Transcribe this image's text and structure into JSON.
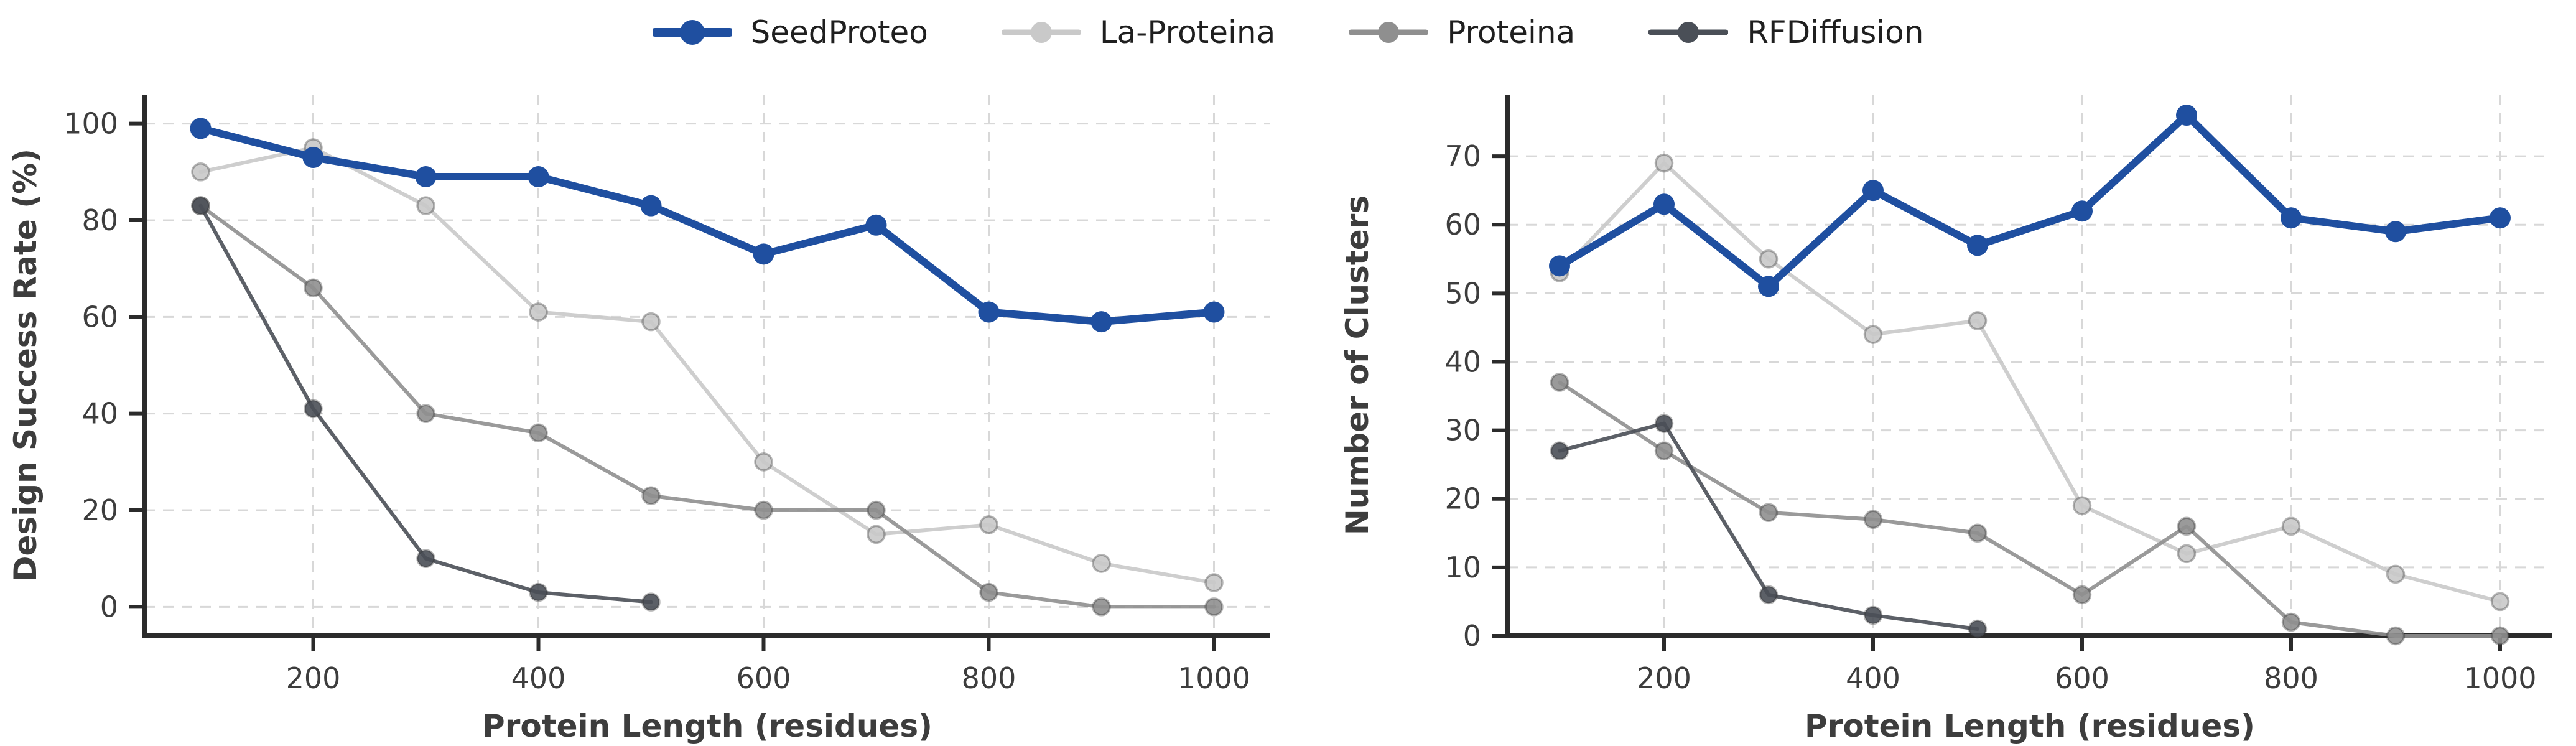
{
  "figure": {
    "background": "#ffffff",
    "legend": {
      "position": "top-center",
      "items": [
        {
          "label": "SeedProteo",
          "color": "#1f4fa0",
          "emphasis": true
        },
        {
          "label": "La-Proteina",
          "color": "#c9c9c9",
          "emphasis": false
        },
        {
          "label": "Proteina",
          "color": "#8f8f8f",
          "emphasis": false
        },
        {
          "label": "RFDiffusion",
          "color": "#4a4f57",
          "emphasis": false
        }
      ]
    },
    "style": {
      "spine_color": "#2b2b2b",
      "grid_color": "#d8d8d8",
      "tick_label_color": "#3d3d3d",
      "axis_title_color": "#3d3d3d"
    }
  },
  "chart_data": [
    {
      "type": "line",
      "title": "",
      "xlabel": "Protein Length (residues)",
      "ylabel": "Design Success Rate (%)",
      "xlim": [
        50,
        1050
      ],
      "ylim": [
        -6,
        106
      ],
      "xticks": [
        200,
        400,
        600,
        800,
        1000
      ],
      "yticks": [
        0,
        20,
        40,
        60,
        80,
        100
      ],
      "grid": true,
      "legend_position": "figure-top",
      "series": [
        {
          "name": "SeedProteo",
          "color": "#1f4fa0",
          "emphasis": true,
          "x": [
            100,
            200,
            300,
            400,
            500,
            600,
            700,
            800,
            900,
            1000
          ],
          "values": [
            99,
            93,
            89,
            89,
            83,
            73,
            79,
            61,
            59,
            61
          ]
        },
        {
          "name": "La-Proteina",
          "color": "#c9c9c9",
          "emphasis": false,
          "x": [
            100,
            200,
            300,
            400,
            500,
            600,
            700,
            800,
            900,
            1000
          ],
          "values": [
            90,
            95,
            83,
            61,
            59,
            30,
            15,
            17,
            9,
            5
          ]
        },
        {
          "name": "Proteina",
          "color": "#8f8f8f",
          "emphasis": false,
          "x": [
            100,
            200,
            300,
            400,
            500,
            600,
            700,
            800,
            900,
            1000
          ],
          "values": [
            83,
            66,
            40,
            36,
            23,
            20,
            20,
            3,
            0,
            0
          ]
        },
        {
          "name": "RFDiffusion",
          "color": "#4a4f57",
          "emphasis": false,
          "x": [
            100,
            200,
            300,
            400,
            500
          ],
          "values": [
            83,
            41,
            10,
            3,
            1
          ]
        }
      ]
    },
    {
      "type": "line",
      "title": "",
      "xlabel": "Protein Length (residues)",
      "ylabel": "Number of Clusters",
      "xlim": [
        50,
        1050
      ],
      "ylim": [
        0,
        79
      ],
      "xticks": [
        200,
        400,
        600,
        800,
        1000
      ],
      "yticks": [
        0,
        10,
        20,
        30,
        40,
        50,
        60,
        70
      ],
      "grid": true,
      "legend_position": "figure-top",
      "series": [
        {
          "name": "SeedProteo",
          "color": "#1f4fa0",
          "emphasis": true,
          "x": [
            100,
            200,
            300,
            400,
            500,
            600,
            700,
            800,
            900,
            1000
          ],
          "values": [
            54,
            63,
            51,
            65,
            57,
            62,
            76,
            61,
            59,
            61
          ]
        },
        {
          "name": "La-Proteina",
          "color": "#c9c9c9",
          "emphasis": false,
          "x": [
            100,
            200,
            300,
            400,
            500,
            600,
            700,
            800,
            900,
            1000
          ],
          "values": [
            53,
            69,
            55,
            44,
            46,
            19,
            12,
            16,
            9,
            5
          ]
        },
        {
          "name": "Proteina",
          "color": "#8f8f8f",
          "emphasis": false,
          "x": [
            100,
            200,
            300,
            400,
            500,
            600,
            700,
            800,
            900,
            1000
          ],
          "values": [
            37,
            27,
            18,
            17,
            15,
            6,
            16,
            2,
            0,
            0
          ]
        },
        {
          "name": "RFDiffusion",
          "color": "#4a4f57",
          "emphasis": false,
          "x": [
            100,
            200,
            300,
            400,
            500
          ],
          "values": [
            27,
            31,
            6,
            3,
            1
          ]
        }
      ]
    }
  ]
}
